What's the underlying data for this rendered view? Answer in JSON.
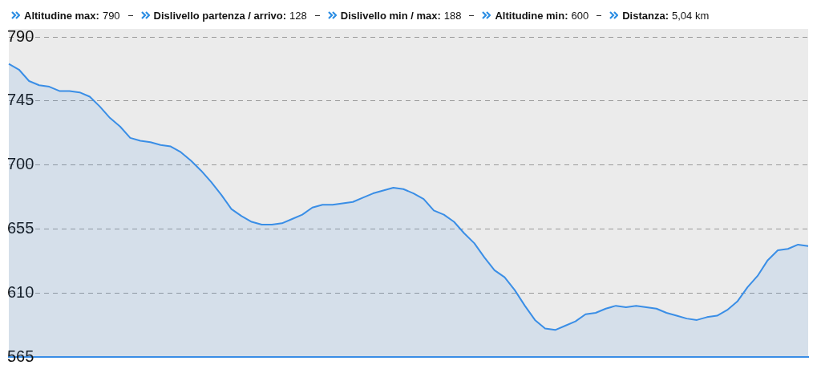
{
  "chart_data": {
    "type": "area",
    "annotations": [
      "Altitudine max: 790",
      "Dislivello partenza / arrivo: 128",
      "Dislivello min / max: 188",
      "Altitudine min: 600",
      "Distanza: 5,04 km"
    ],
    "categories": [
      null,
      null,
      null,
      null,
      null,
      null,
      null,
      null,
      null,
      null,
      null,
      null,
      null,
      null,
      null,
      null,
      null,
      null,
      null,
      null,
      null,
      null,
      null,
      null,
      null,
      null,
      null,
      null,
      null,
      null,
      null,
      null,
      null,
      null,
      null,
      null,
      null,
      null,
      null,
      null,
      null,
      null,
      null,
      null,
      null,
      null,
      null,
      null,
      null,
      null,
      null,
      null,
      null,
      null,
      null,
      null,
      null,
      null,
      null,
      null,
      null,
      null,
      null,
      null,
      null,
      null,
      null,
      null,
      null,
      null,
      null,
      null,
      null,
      null,
      null,
      null,
      null,
      null,
      null,
      null
    ],
    "values": [
      771,
      767,
      759,
      756,
      755,
      752,
      752,
      751,
      748,
      741,
      733,
      727,
      719,
      717,
      716,
      714,
      713,
      709,
      703,
      696,
      688,
      679,
      669,
      664,
      660,
      658,
      658,
      659,
      662,
      665,
      670,
      672,
      672,
      673,
      674,
      677,
      680,
      682,
      684,
      683,
      680,
      676,
      668,
      665,
      660,
      652,
      645,
      635,
      626,
      621,
      612,
      601,
      591,
      585,
      584,
      587,
      590,
      595,
      596,
      599,
      601,
      600,
      601,
      600,
      599,
      596,
      594,
      592,
      591,
      593,
      594,
      598,
      604,
      614,
      622,
      633,
      640,
      641,
      644,
      643
    ],
    "color": "#3a8ee6",
    "ylim": [
      565,
      790
    ],
    "yticks": [
      565,
      610,
      655,
      700,
      745,
      790
    ],
    "grid": "y",
    "tick_labels": "y",
    "marker": "none"
  }
}
